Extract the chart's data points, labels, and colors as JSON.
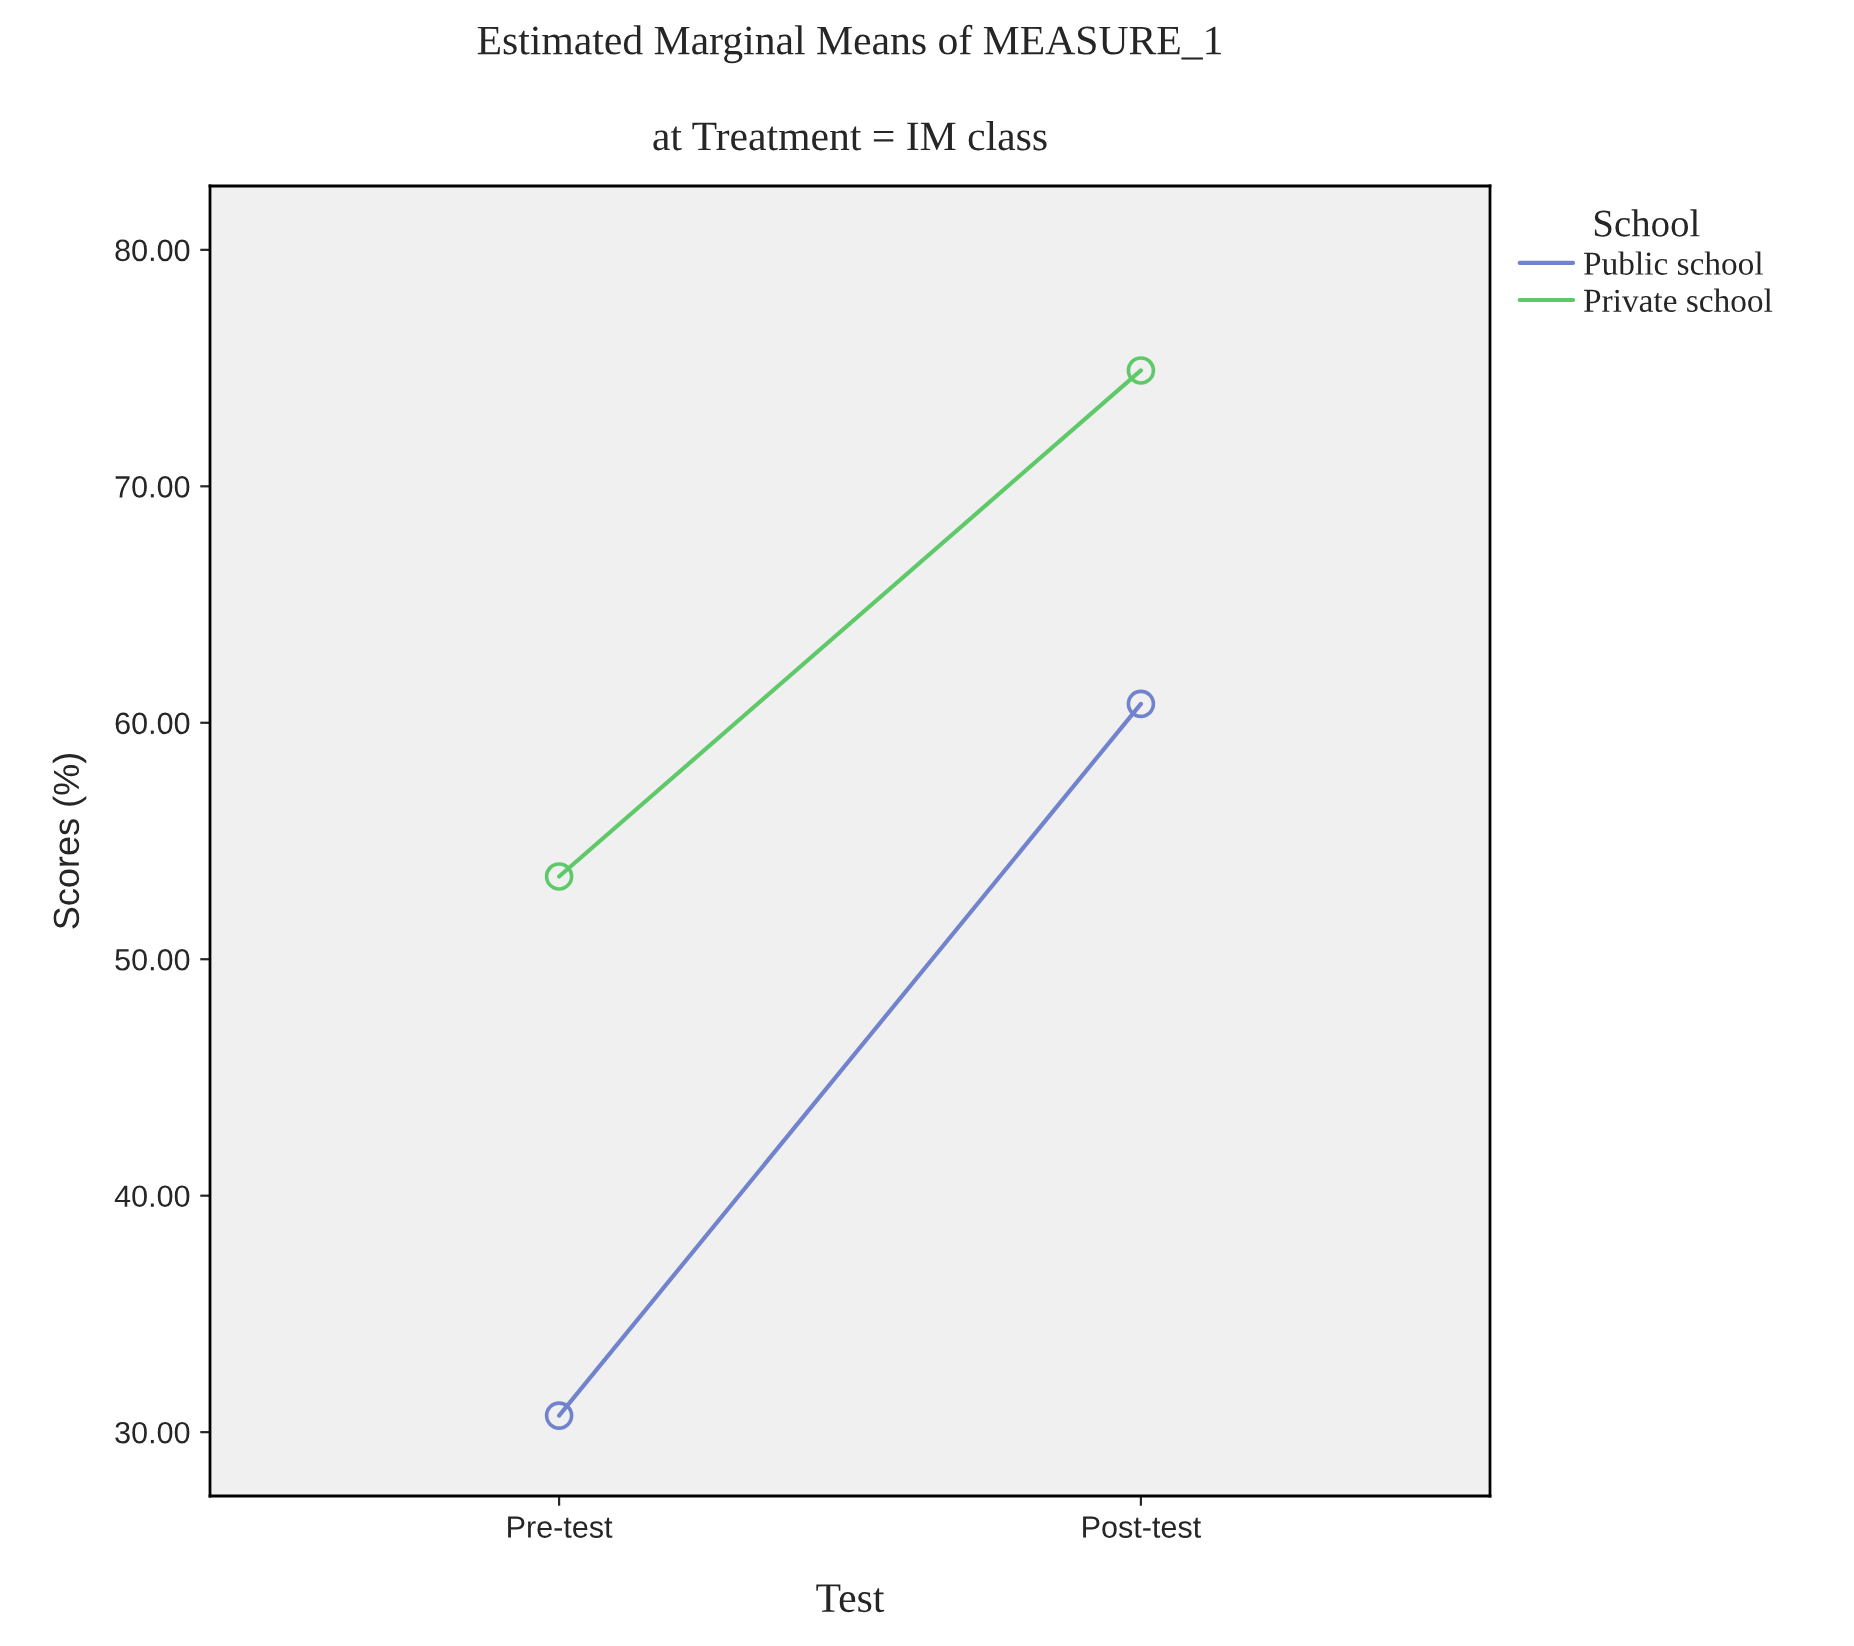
{
  "chart_data": {
    "type": "line",
    "title": "Estimated Marginal Means of MEASURE_1",
    "subtitle": "at Treatment = IM class",
    "xlabel": "Test",
    "ylabel": "Scores (%)",
    "legend_title": "School",
    "categories": [
      "Pre-test",
      "Post-test"
    ],
    "series": [
      {
        "name": "Public school",
        "color": "#7083cc",
        "values": [
          30.7,
          60.8
        ]
      },
      {
        "name": "Private school",
        "color": "#5fc96a",
        "values": [
          53.5,
          74.9
        ]
      }
    ],
    "ylim": [
      27.3,
      82.7
    ],
    "yticks": [
      {
        "value": 30,
        "label": "30.00"
      },
      {
        "value": 40,
        "label": "40.00"
      },
      {
        "value": 50,
        "label": "50.00"
      },
      {
        "value": 60,
        "label": "60.00"
      },
      {
        "value": 70,
        "label": "70.00"
      },
      {
        "value": 80,
        "label": "80.00"
      }
    ],
    "grid": false,
    "legend": "top right",
    "marker": "circle",
    "line_style": "solid"
  }
}
